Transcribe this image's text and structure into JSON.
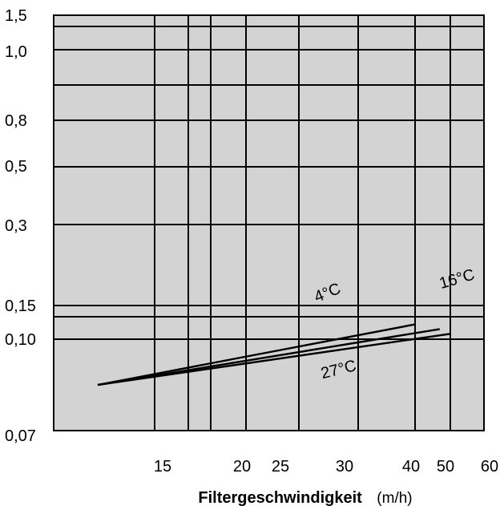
{
  "chart_data": {
    "type": "line",
    "title": "",
    "xlabel": "Filtergeschwindigkeit",
    "xunit": "(m/h)",
    "ylabel": "",
    "background": "#d3d3d3",
    "grid": true,
    "x_ticks": [
      "15",
      "20",
      "25",
      "30",
      "40",
      "50",
      "60"
    ],
    "y_ticks": [
      "1,5",
      "1,0",
      "0,8",
      "0,5",
      "0,3",
      "0,15",
      "0,10",
      "0,07"
    ],
    "series": [
      {
        "name": "4°C",
        "x": [
          10,
          40
        ],
        "y": [
          0.083,
          0.122
        ]
      },
      {
        "name": "16°C",
        "x": [
          10,
          47
        ],
        "y": [
          0.083,
          0.115
        ]
      },
      {
        "name": "27°C",
        "x": [
          10,
          50
        ],
        "y": [
          0.083,
          0.108
        ]
      }
    ]
  }
}
